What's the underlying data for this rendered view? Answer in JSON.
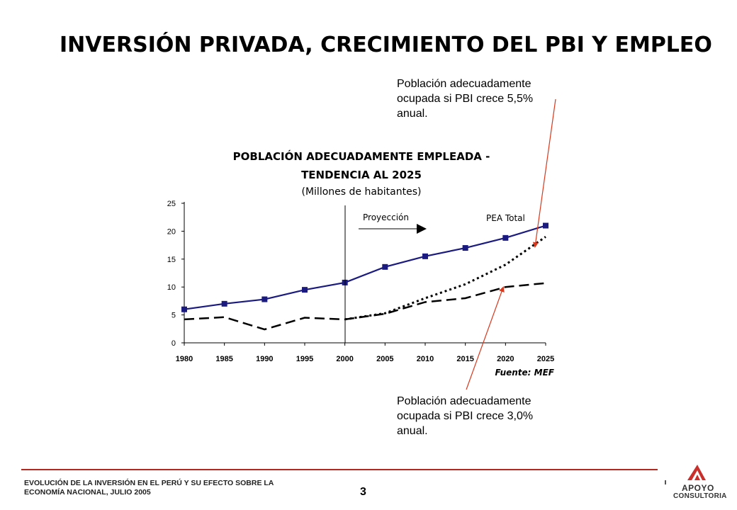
{
  "slide": {
    "title": "INVERSIÓN PRIVADA, CRECIMIENTO DEL PBI Y EMPLEO",
    "callout_top": "Población adecuadamente ocupada si PBI crece 5,5% anual.",
    "callout_bottom": "Población adecuadamente ocupada si PBI crece 3,0% anual.",
    "footer_line1": "EVOLUCIÓN DE LA INVERSIÓN EN EL PERÚ Y SU EFECTO SOBRE LA",
    "footer_line2": "ECONOMÍA NACIONAL, JULIO 2005",
    "page_number": "3",
    "logo_line1": "APOYO",
    "logo_line2": "CONSULTORIA",
    "colors": {
      "accent": "#b52820",
      "series_total": "#1a1a80"
    }
  },
  "chart_data": {
    "type": "line",
    "title": "POBLACIÓN ADECUADAMENTE EMPLEADA -",
    "title_line2": "TENDENCIA AL 2025",
    "subtitle": "(Millones de habitantes)",
    "source": "Fuente: MEF",
    "projection_label": "Proyección",
    "series_label": "PEA Total",
    "x": [
      1980,
      1985,
      1990,
      1995,
      2000,
      2005,
      2010,
      2015,
      2020,
      2025
    ],
    "x_ticks": [
      "1980",
      "1985",
      "1990",
      "1995",
      "2000",
      "2005",
      "2010",
      "2015",
      "2020",
      "2025"
    ],
    "y_ticks": [
      "0",
      "5",
      "10",
      "15",
      "20",
      "25"
    ],
    "ylim": [
      0,
      25
    ],
    "projection_start": 2000,
    "series": [
      {
        "name": "PEA Total",
        "style": "solid-markers",
        "x": [
          1980,
          1985,
          1990,
          1995,
          2000,
          2005,
          2010,
          2015,
          2020,
          2025
        ],
        "values": [
          6.0,
          7.0,
          7.8,
          9.5,
          10.8,
          13.6,
          15.5,
          17.0,
          18.8,
          21.0
        ]
      },
      {
        "style": "dotted",
        "x": [
          2000,
          2005,
          2010,
          2015,
          2020,
          2025
        ],
        "values": [
          4.2,
          5.3,
          8.0,
          10.5,
          14.0,
          19.0
        ]
      },
      {
        "style": "dashed",
        "x": [
          1980,
          1985,
          1990,
          1995,
          2000,
          2005,
          2010,
          2015,
          2020,
          2025
        ],
        "values": [
          4.2,
          4.6,
          2.4,
          4.5,
          4.2,
          5.2,
          7.3,
          8.0,
          10.0,
          10.7
        ]
      }
    ],
    "grid": false,
    "legend": "none"
  }
}
